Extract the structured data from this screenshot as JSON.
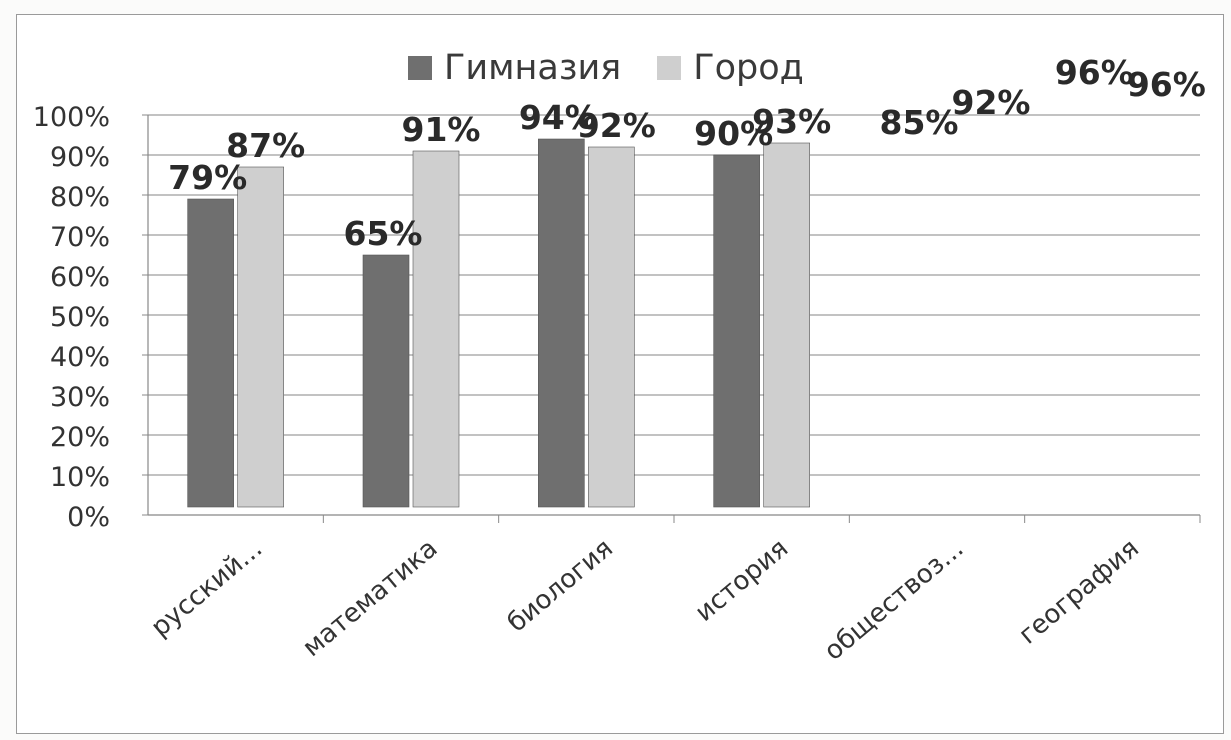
{
  "chart_data": {
    "type": "bar",
    "categories": [
      "русский...",
      "математика",
      "биология",
      "история",
      "обществоз...",
      "география"
    ],
    "series": [
      {
        "name": "Гимназия",
        "values": [
          79,
          65,
          94,
          90,
          null,
          null
        ],
        "color": "#6f6f6f"
      },
      {
        "name": "Город",
        "values": [
          87,
          91,
          92,
          93,
          null,
          null
        ],
        "color": "#cfcfcf"
      }
    ],
    "data_labels": [
      [
        "79%",
        "87%"
      ],
      [
        "65%",
        "91%"
      ],
      [
        "94%",
        "92%"
      ],
      [
        "90%",
        "93%"
      ],
      [
        "85%",
        "92%"
      ],
      [
        "96%",
        "96%"
      ]
    ],
    "y_ticks": [
      "0%",
      "10%",
      "20%",
      "30%",
      "40%",
      "50%",
      "60%",
      "70%",
      "80%",
      "90%",
      "100%"
    ],
    "ylim": [
      0,
      100
    ],
    "grid": true,
    "legend_position": "top"
  }
}
